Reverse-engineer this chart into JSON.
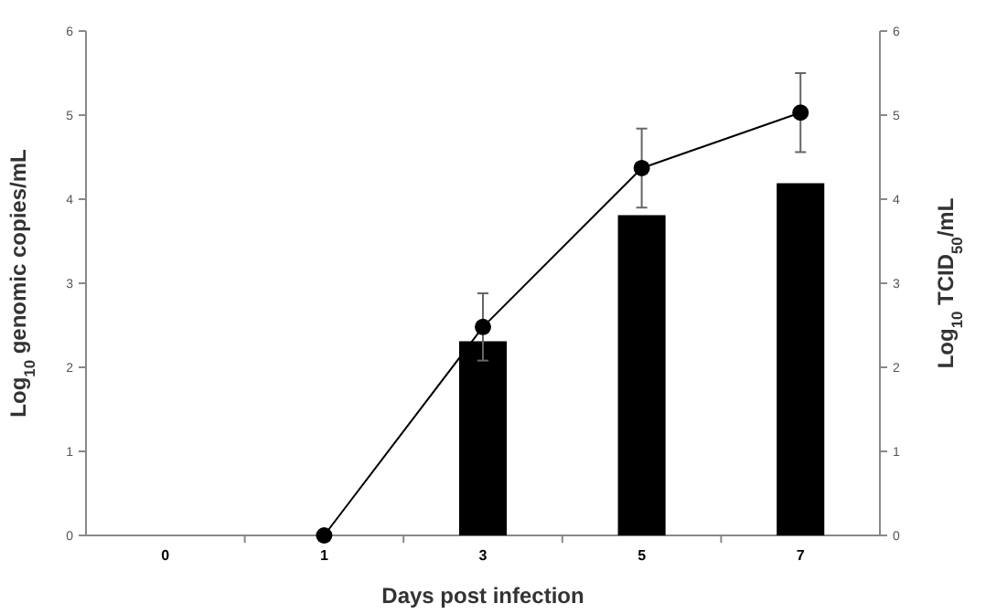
{
  "chart_data": {
    "type": "bar",
    "xlabel": "Days post infection",
    "ylabel": "Log$_{10}$ genomic copies/mL",
    "y2label": "Log$_{10}$ TCID$_{50}$/mL",
    "categories": [
      "0",
      "1",
      "3",
      "5",
      "7"
    ],
    "series": [
      {
        "color": "#000000",
        "values": [
          null,
          null,
          2.31,
          3.81,
          4.19
        ]
      },
      {
        "type": "line",
        "color": "#000000",
        "marker": "circle",
        "line_style": "solid",
        "values": [
          null,
          0,
          2.48,
          4.37,
          5.03
        ],
        "errors": [
          null,
          null,
          0.4,
          0.47,
          0.47
        ]
      }
    ],
    "ylim": [
      0,
      6
    ],
    "yticks": [
      0,
      1,
      2,
      3,
      4,
      5,
      6
    ],
    "y2lim": [
      0,
      6
    ],
    "y2ticks": [
      0,
      1,
      2,
      3,
      4,
      5,
      6
    ],
    "grid": false
  }
}
